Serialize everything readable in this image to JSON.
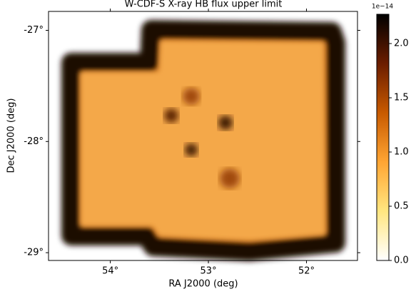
{
  "chart_data": {
    "type": "image",
    "title": "W-CDF-S X-ray HB flux upper limit",
    "x_label": "RA J2000 (deg)",
    "y_label": "Dec J2000 (deg)",
    "xlim": [
      54.63,
      51.48
    ],
    "ylim": [
      -29.07,
      -26.83
    ],
    "xticks": [
      {
        "value": 54,
        "label": "54°"
      },
      {
        "value": 53,
        "label": "53°"
      },
      {
        "value": 52,
        "label": "52°"
      }
    ],
    "yticks": [
      {
        "value": -27,
        "label": "-27°"
      },
      {
        "value": -28,
        "label": "-28°"
      },
      {
        "value": -29,
        "label": "-29°"
      }
    ],
    "colorbar": {
      "lim": [
        0,
        2.27
      ],
      "ticks": [
        {
          "value": 0,
          "label": "0.0"
        },
        0.5,
        {
          "value": 1,
          "label": "1.0"
        },
        1.5,
        {
          "value": 2,
          "label": "2.0"
        }
      ],
      "offset_label": "1e−14",
      "colors": [
        "#ffffff",
        "#ffe680",
        "#ffa533",
        "#c85a00",
        "#6b1d00",
        "#000000"
      ]
    }
  }
}
